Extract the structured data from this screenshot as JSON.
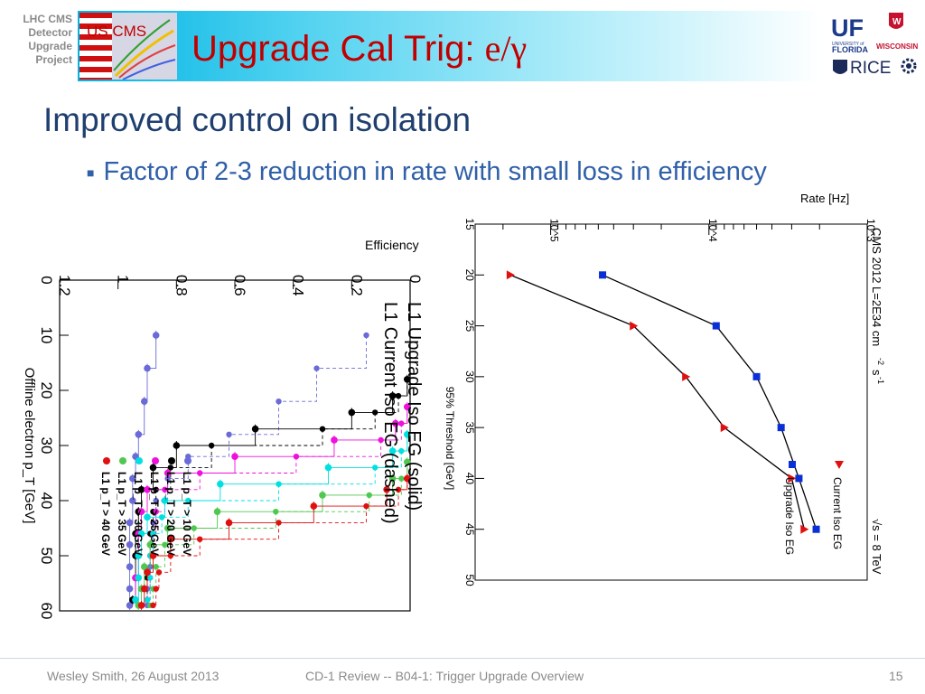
{
  "header": {
    "project_label": [
      "LHC CMS",
      "Detector",
      "Upgrade",
      "Project"
    ],
    "logo_text": "US CMS",
    "title_main": "Upgrade Cal Trig: ",
    "title_symbol": "e/γ",
    "right_logos": {
      "uf": "UF",
      "uf_line1": "UNIVERSITY of",
      "uf_line2": "FLORIDA",
      "wisconsin": "WISCONSIN",
      "rice": "RICE"
    },
    "colors": {
      "title": "#c00000",
      "bar_start": "#00b4e4",
      "heading": "#1f3f6e",
      "bullet": "#3060a8"
    }
  },
  "content": {
    "heading": "Improved control on isolation",
    "bullet": "Factor of 2-3 reduction in rate with small loss in efficiency"
  },
  "footer": {
    "author": "Wesley Smith, 26 August 2013",
    "center": "CD-1  Review -- B04-1: Trigger Upgrade Overview",
    "page": "15"
  },
  "chart_data": [
    {
      "type": "scatter",
      "orientation": "rotated 90° clockwise",
      "title": "Efficiency",
      "xlabel": "Offline electron p_T [GeV]",
      "ylabel": "Efficiency",
      "xlim": [
        0,
        60
      ],
      "ylim": [
        0,
        1.2
      ],
      "x_ticks": [
        "0",
        "10",
        "20",
        "30",
        "40",
        "50",
        "60"
      ],
      "y_ticks": [
        "0",
        "0.2",
        "0.4",
        "0.6",
        "0.8",
        "1",
        "1.2"
      ],
      "annotations": [
        "L1 Upgrade Iso EG (solid)",
        "L1 Current Iso EG (dashed)"
      ],
      "series": [
        {
          "name": "L1 p_T > 10 GeV",
          "color": "#6a6ad8",
          "x": [
            10,
            16,
            22,
            28,
            32,
            36,
            40,
            44,
            48,
            52,
            56,
            59
          ],
          "solid": [
            0.87,
            0.9,
            0.91,
            0.93,
            0.94,
            0.95,
            0.95,
            0.96,
            0.96,
            0.96,
            0.96,
            0.96
          ],
          "dashed": [
            0.15,
            0.32,
            0.45,
            0.62,
            0.76,
            0.83,
            0.87,
            0.88,
            0.89,
            0.89,
            0.9,
            0.9
          ]
        },
        {
          "name": "L1 p_T > 20 GeV",
          "color": "#000000",
          "x": [
            18,
            21,
            24,
            27,
            30,
            34,
            38,
            42,
            46,
            50,
            54,
            58
          ],
          "solid": [
            0.01,
            0.06,
            0.2,
            0.53,
            0.8,
            0.88,
            0.92,
            0.93,
            0.94,
            0.94,
            0.94,
            0.95
          ],
          "dashed": [
            0.01,
            0.04,
            0.12,
            0.3,
            0.68,
            0.82,
            0.87,
            0.88,
            0.89,
            0.89,
            0.9,
            0.9
          ]
        },
        {
          "name": "L1 p_T > 25 GeV",
          "color": "#ee10dd",
          "x": [
            23,
            26,
            29,
            32,
            35,
            38,
            42,
            46,
            50,
            54,
            58
          ],
          "solid": [
            0.01,
            0.05,
            0.26,
            0.6,
            0.83,
            0.9,
            0.92,
            0.93,
            0.93,
            0.94,
            0.94
          ],
          "dashed": [
            0.01,
            0.03,
            0.1,
            0.39,
            0.72,
            0.84,
            0.87,
            0.88,
            0.89,
            0.89,
            0.9
          ]
        },
        {
          "name": "L1 p_T > 30 GeV",
          "color": "#00e0e0",
          "x": [
            28,
            31,
            34,
            37,
            40,
            43,
            46,
            50,
            54,
            58
          ],
          "solid": [
            0.01,
            0.06,
            0.28,
            0.65,
            0.84,
            0.9,
            0.92,
            0.93,
            0.93,
            0.94
          ],
          "dashed": [
            0.01,
            0.03,
            0.12,
            0.45,
            0.76,
            0.85,
            0.88,
            0.89,
            0.89,
            0.9
          ]
        },
        {
          "name": "L1 p_T > 35 GeV",
          "color": "#50c850",
          "x": [
            33,
            36,
            39,
            42,
            45,
            48,
            52,
            56,
            59
          ],
          "solid": [
            0.01,
            0.06,
            0.3,
            0.66,
            0.83,
            0.89,
            0.91,
            0.92,
            0.93
          ],
          "dashed": [
            0.01,
            0.03,
            0.14,
            0.46,
            0.74,
            0.84,
            0.87,
            0.88,
            0.89
          ]
        },
        {
          "name": "L1 p_T > 40 GeV",
          "color": "#e01010",
          "x": [
            36,
            38,
            41,
            44,
            47,
            50,
            53,
            56,
            59
          ],
          "solid": [
            0.01,
            0.08,
            0.33,
            0.62,
            0.82,
            0.88,
            0.9,
            0.91,
            0.92
          ],
          "dashed": [
            0.01,
            0.04,
            0.15,
            0.45,
            0.72,
            0.82,
            0.86,
            0.87,
            0.88
          ]
        }
      ]
    },
    {
      "type": "line",
      "orientation": "rotated 90° clockwise",
      "xlabel": "95% Threshold [GeV]",
      "ylabel": "Rate [Hz]",
      "xlim": [
        15,
        50
      ],
      "ylog": true,
      "ylim": [
        1000,
        300000
      ],
      "x_ticks": [
        "15",
        "20",
        "25",
        "30",
        "35",
        "40",
        "45",
        "50"
      ],
      "y_ticks": [
        "10^3",
        "10^4",
        "10^5"
      ],
      "annotations": [
        "CMS 2012   L=2E34 cm",
        "-2",
        "s",
        "-1",
        "√s = 8 TeV"
      ],
      "series": [
        {
          "name": "Current Iso EG",
          "color": "#e01010",
          "marker": "triangle",
          "x": [
            20,
            25,
            30,
            35,
            40,
            45
          ],
          "y": [
            180000,
            30000,
            14000,
            8000,
            3000,
            2500
          ]
        },
        {
          "name": "Upgrade Iso EG",
          "color": "#0a2fd6",
          "marker": "square",
          "x": [
            20,
            25,
            30,
            35,
            40,
            45
          ],
          "y": [
            47000,
            9000,
            5000,
            3500,
            2700,
            2100
          ]
        }
      ]
    }
  ]
}
